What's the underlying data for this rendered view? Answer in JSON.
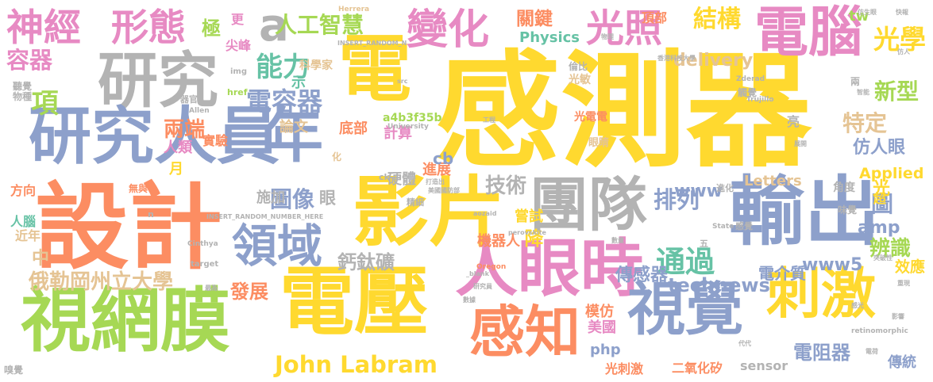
{
  "word_cloud": {
    "words": [
      {
        "text": "感測器",
        "color": "#ffd92f"
      },
      {
        "text": "設計",
        "color": "#fc8d62"
      },
      {
        "text": "研究人員",
        "color": "#8da0cb"
      },
      {
        "text": "電壓",
        "color": "#ffd92f"
      },
      {
        "text": "影片",
        "color": "#ffd92f"
      },
      {
        "text": "團隊",
        "color": "#b3b3b3"
      },
      {
        "text": "輸出",
        "color": "#8da0cb"
      },
      {
        "text": "視網膜",
        "color": "#a6d854"
      },
      {
        "text": "人眼時",
        "color": "#e78ac3"
      },
      {
        "text": "研究",
        "color": "#b3b3b3"
      },
      {
        "text": "年",
        "color": "#8da0cb"
      },
      {
        "text": "電",
        "color": "#ffd92f"
      },
      {
        "text": "刺激",
        "color": "#ffd92f"
      },
      {
        "text": "視覺",
        "color": "#8da0cb"
      },
      {
        "text": "感知",
        "color": "#fc8d62"
      },
      {
        "text": "電腦",
        "color": "#e78ac3"
      },
      {
        "text": "變化",
        "color": "#e78ac3"
      },
      {
        "text": "光照",
        "color": "#e78ac3"
      },
      {
        "text": "領域",
        "color": "#8da0cb"
      },
      {
        "text": "神經",
        "color": "#e78ac3"
      },
      {
        "text": "形態",
        "color": "#e78ac3"
      },
      {
        "text": "a",
        "color": "#b3b3b3"
      },
      {
        "text": "人工智慧",
        "color": "#a6d854"
      },
      {
        "text": "能力",
        "color": "#66c2a5"
      },
      {
        "text": "電容器",
        "color": "#8da0cb"
      },
      {
        "text": "John Labram",
        "color": "#ffd92f"
      },
      {
        "text": "俄勒岡州立大學",
        "color": "#e5c494"
      },
      {
        "text": "通過",
        "color": "#66c2a5"
      },
      {
        "text": "結構",
        "color": "#ffd92f"
      },
      {
        "text": "光學",
        "color": "#ffd92f"
      },
      {
        "text": "排列",
        "color": "#8da0cb"
      },
      {
        "text": "圖像",
        "color": "#8da0cb"
      },
      {
        "text": "鈣鈦礦",
        "color": "#b3b3b3"
      },
      {
        "text": "容器",
        "color": "#e78ac3"
      },
      {
        "text": "項",
        "color": "#a6d854"
      },
      {
        "text": "極",
        "color": "#a6d854"
      },
      {
        "text": "更",
        "color": "#e78ac3"
      },
      {
        "text": "尖峰",
        "color": "#e78ac3"
      },
      {
        "text": "新型",
        "color": "#a6d854"
      },
      {
        "text": "特定",
        "color": "#e5c494"
      },
      {
        "text": "仿人眼",
        "color": "#8da0cb"
      },
      {
        "text": "傳感器",
        "color": "#8da0cb"
      },
      {
        "text": "technews",
        "color": "#8da0cb"
      },
      {
        "text": "電介質",
        "color": "#8da0cb"
      },
      {
        "text": "電阻器",
        "color": "#8da0cb"
      },
      {
        "text": "光刺激",
        "color": "#fc8d62"
      },
      {
        "text": "二氧化矽",
        "color": "#fc8d62"
      },
      {
        "text": "傳統",
        "color": "#8da0cb"
      },
      {
        "text": "發展",
        "color": "#fc8d62"
      },
      {
        "text": "降",
        "color": "#ffd92f"
      },
      {
        "text": "機器人",
        "color": "#fc8d62"
      },
      {
        "text": "技術",
        "color": "#b3b3b3"
      },
      {
        "text": "嘗試",
        "color": "#ffd92f"
      },
      {
        "text": "進展",
        "color": "#fc8d62"
      },
      {
        "text": "硬體",
        "color": "#b3b3b3"
      },
      {
        "text": "眼",
        "color": "#b3b3b3"
      },
      {
        "text": "施加",
        "color": "#b3b3b3"
      },
      {
        "text": "實驗",
        "color": "#fc8d62"
      },
      {
        "text": "論文",
        "color": "#e5c494"
      },
      {
        "text": "人類",
        "color": "#e78ac3"
      },
      {
        "text": "兩端",
        "color": "#fc8d62"
      },
      {
        "text": "底部",
        "color": "#fc8d62"
      },
      {
        "text": "計算",
        "color": "#e78ac3"
      },
      {
        "text": "頂部",
        "color": "#fc8d62"
      },
      {
        "text": "關鍵",
        "color": "#fc8d62"
      },
      {
        "text": "Physics",
        "color": "#66c2a5"
      },
      {
        "text": "delivery",
        "color": "#e5c494"
      },
      {
        "text": "tw",
        "color": "#a6d854"
      },
      {
        "text": "Applied",
        "color": "#ffd92f"
      },
      {
        "text": "www",
        "color": "#8da0cb"
      },
      {
        "text": "www5",
        "color": "#8da0cb"
      },
      {
        "text": "amp",
        "color": "#8da0cb"
      },
      {
        "text": "圖",
        "color": "#8da0cb"
      },
      {
        "text": "辨識",
        "color": "#a6d854"
      },
      {
        "text": "效應",
        "color": "#ffd92f"
      },
      {
        "text": "超",
        "color": "#ffd92f"
      },
      {
        "text": "光",
        "color": "#ffd92f"
      },
      {
        "text": "Letters",
        "color": "#e5c494"
      },
      {
        "text": "php",
        "color": "#8da0cb"
      },
      {
        "text": "sensor",
        "color": "#b3b3b3"
      },
      {
        "text": "美國",
        "color": "#e78ac3"
      },
      {
        "text": "模仿",
        "color": "#fc8d62"
      },
      {
        "text": "cb",
        "color": "#8da0cb"
      },
      {
        "text": "示",
        "color": "#66c2a5"
      },
      {
        "text": "中",
        "color": "#e5c494"
      },
      {
        "text": "近年",
        "color": "#e5c494"
      },
      {
        "text": "人腦",
        "color": "#66c2a5"
      },
      {
        "text": "方向",
        "color": "#fc8d62"
      },
      {
        "text": "月",
        "color": "#ffd92f"
      },
      {
        "text": "科學家",
        "color": "#e5c494"
      },
      {
        "text": "a4b3f35b",
        "color": "#a6d854"
      },
      {
        "text": "光敏",
        "color": "#e5c494"
      },
      {
        "text": "光電電",
        "color": "#fc8d62"
      },
      {
        "text": "眼睛",
        "color": "#e5c494"
      },
      {
        "text": "角度",
        "color": "#b3b3b3"
      },
      {
        "text": "亮",
        "color": "#b3b3b3"
      },
      {
        "text": "觸覺",
        "color": "#b3b3b3"
      },
      {
        "text": "倫比",
        "color": "#b3b3b3"
      },
      {
        "text": "精細",
        "color": "#b3b3b3"
      },
      {
        "text": "味覺",
        "color": "#b3b3b3"
      },
      {
        "text": "聽覺",
        "color": "#b3b3b3"
      },
      {
        "text": "物種",
        "color": "#b3b3b3"
      },
      {
        "text": "嗅覺",
        "color": "#b3b3b3"
      },
      {
        "text": "器官",
        "color": "#b3b3b3"
      },
      {
        "text": "化",
        "color": "#e5c494"
      },
      {
        "text": "無與",
        "color": "#fc8d62"
      },
      {
        "text": "兩",
        "color": "#b3b3b3"
      },
      {
        "text": "五",
        "color": "#b3b3b3"
      },
      {
        "text": "感覺",
        "color": "#b3b3b3"
      },
      {
        "text": "進化",
        "color": "#b3b3b3"
      },
      {
        "text": "ck",
        "color": "#b3b3b3"
      },
      {
        "text": "href",
        "color": "#a6d854"
      },
      {
        "text": "img",
        "color": "#b3b3b3"
      },
      {
        "text": "target",
        "color": "#b3b3b3"
      },
      {
        "text": "n",
        "color": "#b3b3b3"
      },
      {
        "text": "Herrera",
        "color": "#e5c494"
      },
      {
        "text": "Allen",
        "color": "#b3b3b3"
      },
      {
        "text": "Trujillo",
        "color": "#b3b3b3"
      },
      {
        "text": "Cinthya",
        "color": "#b3b3b3"
      },
      {
        "text": "Oregon",
        "color": "#fc8d62"
      },
      {
        "text": "State",
        "color": "#b3b3b3"
      },
      {
        "text": "University",
        "color": "#b3b3b3"
      },
      {
        "text": "Zderad",
        "color": "#b3b3b3"
      },
      {
        "text": "perovskite",
        "color": "#b3b3b3"
      },
      {
        "text": "retinomorphic",
        "color": "#b3b3b3"
      },
      {
        "text": "INSERT_RANDOM_N",
        "color": "#b3b3b3"
      },
      {
        "text": "INSERT_RANDOM_NUMBER_HERE",
        "color": "#b3b3b3"
      },
      {
        "text": "_blank",
        "color": "#b3b3b3"
      },
      {
        "text": "src",
        "color": "#b3b3b3"
      },
      {
        "text": "aozaid",
        "color": "#b3b3b3"
      },
      {
        "text": "仿生眼",
        "color": "#b3b3b3"
      },
      {
        "text": "快報",
        "color": "#b3b3b3"
      },
      {
        "text": "研究員",
        "color": "#b3b3b3"
      },
      {
        "text": "代代",
        "color": "#b3b3b3"
      },
      {
        "text": "重現",
        "color": "#b3b3b3"
      },
      {
        "text": "突破性",
        "color": "#b3b3b3"
      },
      {
        "text": "數量",
        "color": "#b3b3b3"
      },
      {
        "text": "數據",
        "color": "#b3b3b3"
      },
      {
        "text": "展開",
        "color": "#b3b3b3"
      },
      {
        "text": "電荷",
        "color": "#b3b3b3"
      },
      {
        "text": "工程",
        "color": "#b3b3b3"
      },
      {
        "text": "打造出",
        "color": "#b3b3b3"
      },
      {
        "text": "美國國防部",
        "color": "#b3b3b3"
      },
      {
        "text": "智能",
        "color": "#b3b3b3"
      },
      {
        "text": "影響",
        "color": "#b3b3b3"
      },
      {
        "text": "仿人",
        "color": "#b3b3b3"
      },
      {
        "text": "感光",
        "color": "#b3b3b3"
      },
      {
        "text": "最為",
        "color": "#b3b3b3"
      },
      {
        "text": "物理",
        "color": "#b3b3b3"
      },
      {
        "text": "香港科技大學",
        "color": "#b3b3b3"
      }
    ]
  }
}
